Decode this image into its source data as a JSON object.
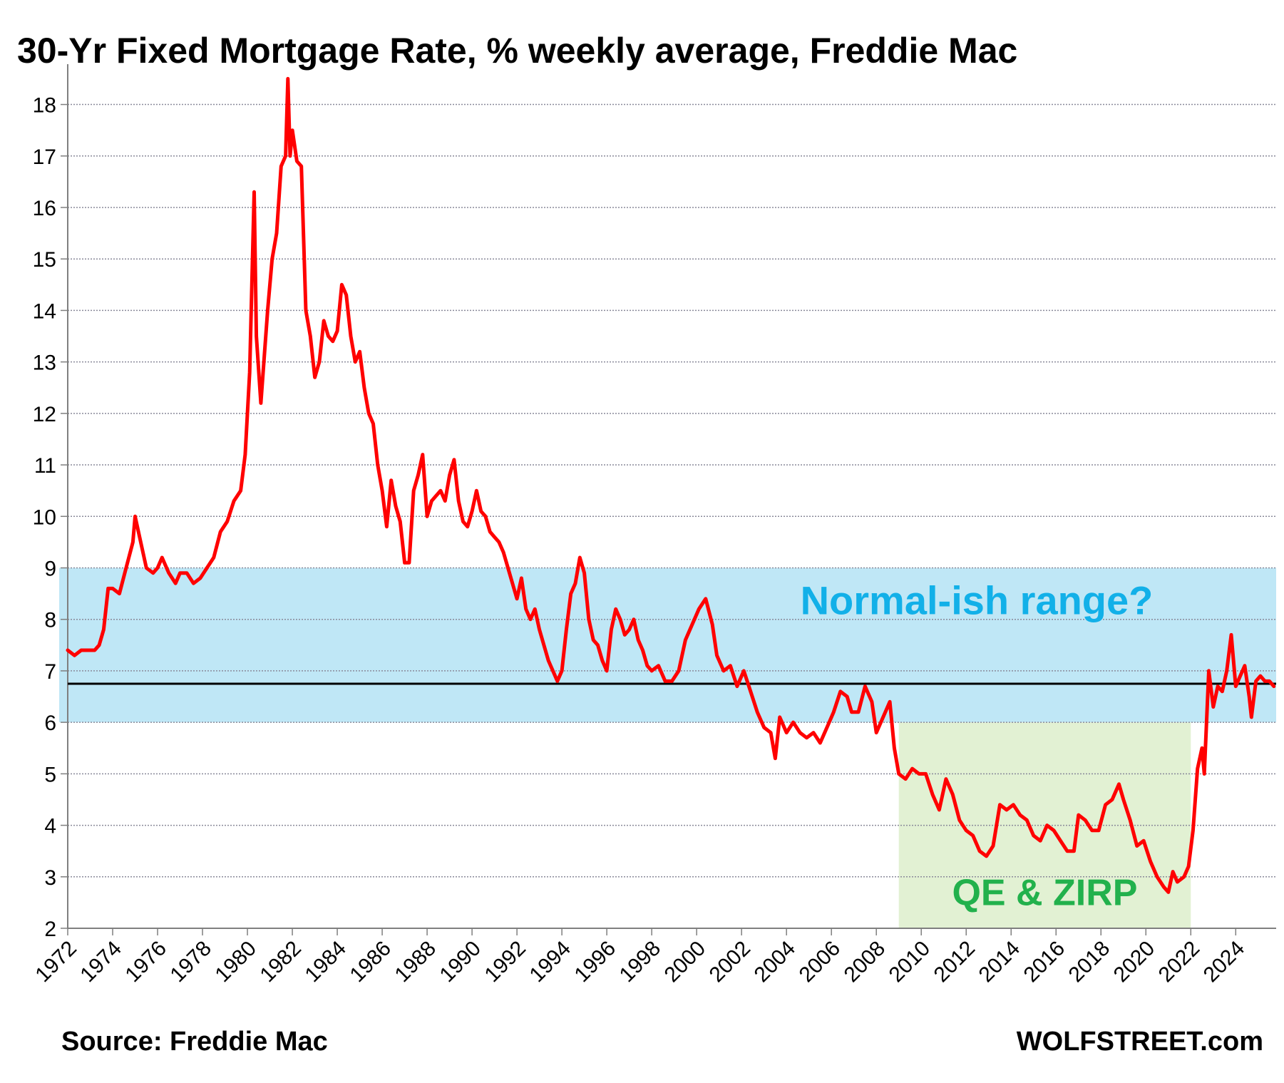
{
  "chart_data": {
    "type": "line",
    "title": "30-Yr Fixed Mortgage Rate, % weekly average, Freddie Mac",
    "xlabel": "",
    "ylabel": "",
    "x_range": [
      1972,
      2025.8
    ],
    "ylim": [
      2,
      18.7
    ],
    "y_ticks": [
      "2",
      "3",
      "4",
      "5",
      "6",
      "7",
      "8",
      "9",
      "10",
      "11",
      "12",
      "13",
      "14",
      "15",
      "16",
      "17",
      "18"
    ],
    "x_ticks": [
      "1972",
      "1974",
      "1976",
      "1978",
      "1980",
      "1982",
      "1984",
      "1986",
      "1988",
      "1990",
      "1992",
      "1994",
      "1996",
      "1998",
      "2000",
      "2002",
      "2004",
      "2006",
      "2008",
      "2010",
      "2012",
      "2014",
      "2016",
      "2018",
      "2020",
      "2022",
      "2024"
    ],
    "grid": "horizontal-dotted",
    "series": [
      {
        "color": "#ff0000",
        "points": [
          [
            1972.0,
            7.4
          ],
          [
            1972.3,
            7.3
          ],
          [
            1972.6,
            7.4
          ],
          [
            1972.9,
            7.4
          ],
          [
            1973.2,
            7.4
          ],
          [
            1973.4,
            7.5
          ],
          [
            1973.6,
            7.8
          ],
          [
            1973.8,
            8.6
          ],
          [
            1974.0,
            8.6
          ],
          [
            1974.3,
            8.5
          ],
          [
            1974.6,
            9.0
          ],
          [
            1974.9,
            9.5
          ],
          [
            1975.0,
            10.0
          ],
          [
            1975.2,
            9.6
          ],
          [
            1975.5,
            9.0
          ],
          [
            1975.8,
            8.9
          ],
          [
            1976.0,
            9.0
          ],
          [
            1976.2,
            9.2
          ],
          [
            1976.5,
            8.9
          ],
          [
            1976.8,
            8.7
          ],
          [
            1977.0,
            8.9
          ],
          [
            1977.3,
            8.9
          ],
          [
            1977.6,
            8.7
          ],
          [
            1977.9,
            8.8
          ],
          [
            1978.2,
            9.0
          ],
          [
            1978.5,
            9.2
          ],
          [
            1978.8,
            9.7
          ],
          [
            1979.1,
            9.9
          ],
          [
            1979.4,
            10.3
          ],
          [
            1979.7,
            10.5
          ],
          [
            1979.9,
            11.2
          ],
          [
            1980.1,
            12.8
          ],
          [
            1980.3,
            16.3
          ],
          [
            1980.4,
            13.5
          ],
          [
            1980.6,
            12.2
          ],
          [
            1980.9,
            14.0
          ],
          [
            1981.1,
            15.0
          ],
          [
            1981.3,
            15.5
          ],
          [
            1981.5,
            16.8
          ],
          [
            1981.7,
            17.0
          ],
          [
            1981.8,
            18.5
          ],
          [
            1981.9,
            17.0
          ],
          [
            1982.0,
            17.5
          ],
          [
            1982.2,
            16.9
          ],
          [
            1982.4,
            16.8
          ],
          [
            1982.6,
            14.0
          ],
          [
            1982.8,
            13.5
          ],
          [
            1983.0,
            12.7
          ],
          [
            1983.2,
            13.0
          ],
          [
            1983.4,
            13.8
          ],
          [
            1983.6,
            13.5
          ],
          [
            1983.8,
            13.4
          ],
          [
            1984.0,
            13.6
          ],
          [
            1984.2,
            14.5
          ],
          [
            1984.4,
            14.3
          ],
          [
            1984.6,
            13.5
          ],
          [
            1984.8,
            13.0
          ],
          [
            1985.0,
            13.2
          ],
          [
            1985.2,
            12.5
          ],
          [
            1985.4,
            12.0
          ],
          [
            1985.6,
            11.8
          ],
          [
            1985.8,
            11.0
          ],
          [
            1986.0,
            10.5
          ],
          [
            1986.2,
            9.8
          ],
          [
            1986.4,
            10.7
          ],
          [
            1986.6,
            10.2
          ],
          [
            1986.8,
            9.9
          ],
          [
            1987.0,
            9.1
          ],
          [
            1987.2,
            9.1
          ],
          [
            1987.4,
            10.5
          ],
          [
            1987.6,
            10.8
          ],
          [
            1987.8,
            11.2
          ],
          [
            1988.0,
            10.0
          ],
          [
            1988.2,
            10.3
          ],
          [
            1988.4,
            10.4
          ],
          [
            1988.6,
            10.5
          ],
          [
            1988.8,
            10.3
          ],
          [
            1989.0,
            10.8
          ],
          [
            1989.2,
            11.1
          ],
          [
            1989.4,
            10.3
          ],
          [
            1989.6,
            9.9
          ],
          [
            1989.8,
            9.8
          ],
          [
            1990.0,
            10.1
          ],
          [
            1990.2,
            10.5
          ],
          [
            1990.4,
            10.1
          ],
          [
            1990.6,
            10.0
          ],
          [
            1990.8,
            9.7
          ],
          [
            1991.0,
            9.6
          ],
          [
            1991.2,
            9.5
          ],
          [
            1991.4,
            9.3
          ],
          [
            1991.6,
            9.0
          ],
          [
            1991.8,
            8.7
          ],
          [
            1992.0,
            8.4
          ],
          [
            1992.2,
            8.8
          ],
          [
            1992.4,
            8.2
          ],
          [
            1992.6,
            8.0
          ],
          [
            1992.8,
            8.2
          ],
          [
            1993.0,
            7.8
          ],
          [
            1993.2,
            7.5
          ],
          [
            1993.4,
            7.2
          ],
          [
            1993.6,
            7.0
          ],
          [
            1993.8,
            6.8
          ],
          [
            1994.0,
            7.0
          ],
          [
            1994.2,
            7.8
          ],
          [
            1994.4,
            8.5
          ],
          [
            1994.6,
            8.7
          ],
          [
            1994.8,
            9.2
          ],
          [
            1995.0,
            8.9
          ],
          [
            1995.2,
            8.0
          ],
          [
            1995.4,
            7.6
          ],
          [
            1995.6,
            7.5
          ],
          [
            1995.8,
            7.2
          ],
          [
            1996.0,
            7.0
          ],
          [
            1996.2,
            7.8
          ],
          [
            1996.4,
            8.2
          ],
          [
            1996.6,
            8.0
          ],
          [
            1996.8,
            7.7
          ],
          [
            1997.0,
            7.8
          ],
          [
            1997.2,
            8.0
          ],
          [
            1997.4,
            7.6
          ],
          [
            1997.6,
            7.4
          ],
          [
            1997.8,
            7.1
          ],
          [
            1998.0,
            7.0
          ],
          [
            1998.3,
            7.1
          ],
          [
            1998.6,
            6.8
          ],
          [
            1998.9,
            6.8
          ],
          [
            1999.2,
            7.0
          ],
          [
            1999.5,
            7.6
          ],
          [
            1999.8,
            7.9
          ],
          [
            2000.1,
            8.2
          ],
          [
            2000.4,
            8.4
          ],
          [
            2000.7,
            7.9
          ],
          [
            2000.9,
            7.3
          ],
          [
            2001.2,
            7.0
          ],
          [
            2001.5,
            7.1
          ],
          [
            2001.8,
            6.7
          ],
          [
            2002.1,
            7.0
          ],
          [
            2002.4,
            6.6
          ],
          [
            2002.7,
            6.2
          ],
          [
            2003.0,
            5.9
          ],
          [
            2003.3,
            5.8
          ],
          [
            2003.5,
            5.3
          ],
          [
            2003.7,
            6.1
          ],
          [
            2004.0,
            5.8
          ],
          [
            2004.3,
            6.0
          ],
          [
            2004.6,
            5.8
          ],
          [
            2004.9,
            5.7
          ],
          [
            2005.2,
            5.8
          ],
          [
            2005.5,
            5.6
          ],
          [
            2005.8,
            5.9
          ],
          [
            2006.1,
            6.2
          ],
          [
            2006.4,
            6.6
          ],
          [
            2006.7,
            6.5
          ],
          [
            2006.9,
            6.2
          ],
          [
            2007.2,
            6.2
          ],
          [
            2007.5,
            6.7
          ],
          [
            2007.8,
            6.4
          ],
          [
            2008.0,
            5.8
          ],
          [
            2008.3,
            6.1
          ],
          [
            2008.6,
            6.4
          ],
          [
            2008.8,
            5.5
          ],
          [
            2009.0,
            5.0
          ],
          [
            2009.3,
            4.9
          ],
          [
            2009.6,
            5.1
          ],
          [
            2009.9,
            5.0
          ],
          [
            2010.2,
            5.0
          ],
          [
            2010.5,
            4.6
          ],
          [
            2010.8,
            4.3
          ],
          [
            2011.1,
            4.9
          ],
          [
            2011.4,
            4.6
          ],
          [
            2011.7,
            4.1
          ],
          [
            2012.0,
            3.9
          ],
          [
            2012.3,
            3.8
          ],
          [
            2012.6,
            3.5
          ],
          [
            2012.9,
            3.4
          ],
          [
            2013.2,
            3.6
          ],
          [
            2013.5,
            4.4
          ],
          [
            2013.8,
            4.3
          ],
          [
            2014.1,
            4.4
          ],
          [
            2014.4,
            4.2
          ],
          [
            2014.7,
            4.1
          ],
          [
            2015.0,
            3.8
          ],
          [
            2015.3,
            3.7
          ],
          [
            2015.6,
            4.0
          ],
          [
            2015.9,
            3.9
          ],
          [
            2016.2,
            3.7
          ],
          [
            2016.5,
            3.5
          ],
          [
            2016.8,
            3.5
          ],
          [
            2017.0,
            4.2
          ],
          [
            2017.3,
            4.1
          ],
          [
            2017.6,
            3.9
          ],
          [
            2017.9,
            3.9
          ],
          [
            2018.2,
            4.4
          ],
          [
            2018.5,
            4.5
          ],
          [
            2018.8,
            4.8
          ],
          [
            2019.0,
            4.5
          ],
          [
            2019.3,
            4.1
          ],
          [
            2019.6,
            3.6
          ],
          [
            2019.9,
            3.7
          ],
          [
            2020.2,
            3.3
          ],
          [
            2020.5,
            3.0
          ],
          [
            2020.8,
            2.8
          ],
          [
            2021.0,
            2.7
          ],
          [
            2021.2,
            3.1
          ],
          [
            2021.4,
            2.9
          ],
          [
            2021.7,
            3.0
          ],
          [
            2021.9,
            3.2
          ],
          [
            2022.1,
            3.9
          ],
          [
            2022.3,
            5.1
          ],
          [
            2022.5,
            5.5
          ],
          [
            2022.6,
            5.0
          ],
          [
            2022.8,
            7.0
          ],
          [
            2023.0,
            6.3
          ],
          [
            2023.2,
            6.7
          ],
          [
            2023.4,
            6.6
          ],
          [
            2023.6,
            7.0
          ],
          [
            2023.8,
            7.7
          ],
          [
            2024.0,
            6.7
          ],
          [
            2024.2,
            6.9
          ],
          [
            2024.4,
            7.1
          ],
          [
            2024.6,
            6.5
          ],
          [
            2024.7,
            6.1
          ],
          [
            2024.9,
            6.8
          ],
          [
            2025.1,
            6.9
          ],
          [
            2025.3,
            6.8
          ],
          [
            2025.5,
            6.8
          ],
          [
            2025.7,
            6.7
          ]
        ]
      }
    ],
    "reference_line": {
      "y": 6.75,
      "color": "#000000"
    },
    "shaded_regions": [
      {
        "x0": 1972,
        "x1": 2025.8,
        "y0": 6,
        "y1": 9,
        "color": "#bfe7f6",
        "label": "Normal-ish range?",
        "label_color": "#12b0e8"
      },
      {
        "x0": 2009,
        "x1": 2022.0,
        "y0": 2,
        "y1": 6,
        "color": "#e2f1d3",
        "label": "QE & ZIRP",
        "label_color": "#22b14c"
      }
    ]
  },
  "footer": {
    "source": "Source: Freddie Mac",
    "brand": "WOLFSTREET.com"
  }
}
